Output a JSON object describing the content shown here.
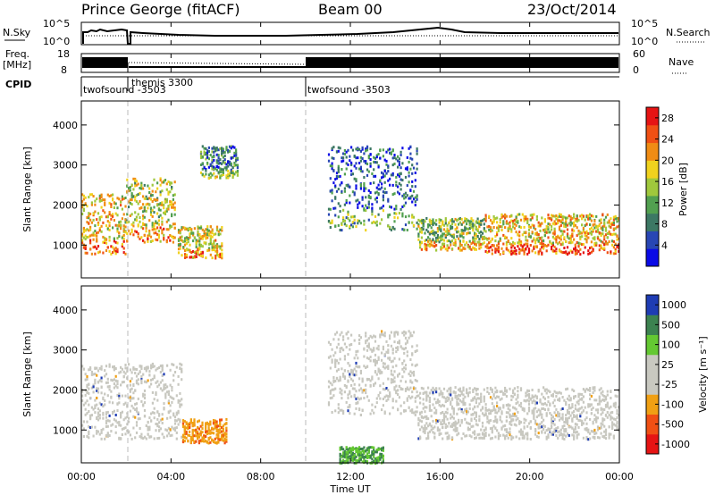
{
  "header": {
    "station": "Prince George (fitACF)",
    "beam": "Beam 00",
    "date": "23/Oct/2014"
  },
  "top_panels": {
    "nsky": {
      "left_label": "N.Sky",
      "right_label": "N.Search",
      "left_ticks": [
        "10^5",
        "10^0"
      ],
      "right_ticks": [
        "10^5",
        "10^0"
      ]
    },
    "freq": {
      "left_label_line1": "Freq.",
      "left_label_line2": "[MHz]",
      "left_ticks": [
        "18",
        "8"
      ],
      "right_label": "Nave",
      "right_ticks": [
        "60",
        "0"
      ]
    },
    "cpid": {
      "label": "CPID",
      "segments": [
        {
          "name": "twofsound -3503",
          "start_hour": 0.0,
          "end_hour": 2.0
        },
        {
          "name": "themis 3300",
          "start_hour": 2.0,
          "end_hour": 10.0
        },
        {
          "name": "twofsound -3503",
          "start_hour": 10.0,
          "end_hour": 24.0
        }
      ]
    }
  },
  "colors": {
    "power_scale": [
      "#0a0ae6",
      "#2846b4",
      "#3c7864",
      "#52a050",
      "#a0c83c",
      "#f0d21e",
      "#f08c14",
      "#f05014",
      "#e61414"
    ],
    "velocity_scale": [
      "#e61414",
      "#f05014",
      "#f0a014",
      "#c8c8c0",
      "#c8c8c0",
      "#64c832",
      "#3c8250",
      "#1e3cb4"
    ],
    "ground_scatter": "#c8c8c0"
  },
  "x_axis": {
    "label": "Time UT",
    "ticks": [
      "00:00",
      "04:00",
      "08:00",
      "12:00",
      "16:00",
      "20:00",
      "00:00"
    ]
  },
  "chart_data": [
    {
      "type": "heatmap",
      "title": "Power",
      "ylabel": "Slant Range [km]",
      "y_ticks": [
        "1000",
        "2000",
        "3000",
        "4000"
      ],
      "ylim": [
        180,
        4600
      ],
      "xlim": [
        0,
        24
      ],
      "colorbar": {
        "label": "Power [dB]",
        "ticks": [
          "4",
          "8",
          "12",
          "16",
          "20",
          "24",
          "28"
        ],
        "range": [
          0,
          30
        ]
      },
      "echo_regions": [
        {
          "t0": 0.0,
          "t1": 2.0,
          "r0": 800,
          "r1": 2300,
          "level": 18
        },
        {
          "t0": 2.0,
          "t1": 4.2,
          "r0": 1100,
          "r1": 2700,
          "level": 16
        },
        {
          "t0": 4.3,
          "t1": 6.3,
          "r0": 700,
          "r1": 1500,
          "level": 17
        },
        {
          "t0": 5.3,
          "t1": 7.0,
          "r0": 2700,
          "r1": 3500,
          "level": 8
        },
        {
          "t0": 11.0,
          "t1": 15.0,
          "r0": 1400,
          "r1": 3500,
          "level": 6
        },
        {
          "t0": 15.0,
          "t1": 18.0,
          "r0": 900,
          "r1": 1700,
          "level": 14
        },
        {
          "t0": 18.0,
          "t1": 24.0,
          "r0": 800,
          "r1": 1800,
          "level": 19
        }
      ]
    },
    {
      "type": "heatmap",
      "title": "Velocity",
      "ylabel": "Slant Range [km]",
      "xlabel": "Time UT",
      "y_ticks": [
        "1000",
        "2000",
        "3000",
        "4000"
      ],
      "ylim": [
        180,
        4600
      ],
      "xlim": [
        0,
        24
      ],
      "colorbar": {
        "label": "Velocity [m s⁻¹]",
        "ticks": [
          "1000",
          "500",
          "100",
          "25",
          "-25",
          "-100",
          "-500",
          "-1000"
        ],
        "range": [
          -1000,
          1000
        ]
      },
      "echo_regions": [
        {
          "t0": 0.0,
          "t1": 4.5,
          "r0": 800,
          "r1": 2700,
          "kind": "ground"
        },
        {
          "t0": 4.5,
          "t1": 6.5,
          "r0": 700,
          "r1": 1300,
          "kind": "negative"
        },
        {
          "t0": 11.0,
          "t1": 15.0,
          "r0": 1400,
          "r1": 3500,
          "kind": "ground"
        },
        {
          "t0": 11.5,
          "t1": 13.5,
          "r0": 200,
          "r1": 600,
          "kind": "positive"
        },
        {
          "t0": 15.0,
          "t1": 24.0,
          "r0": 800,
          "r1": 2100,
          "kind": "ground"
        }
      ]
    }
  ]
}
